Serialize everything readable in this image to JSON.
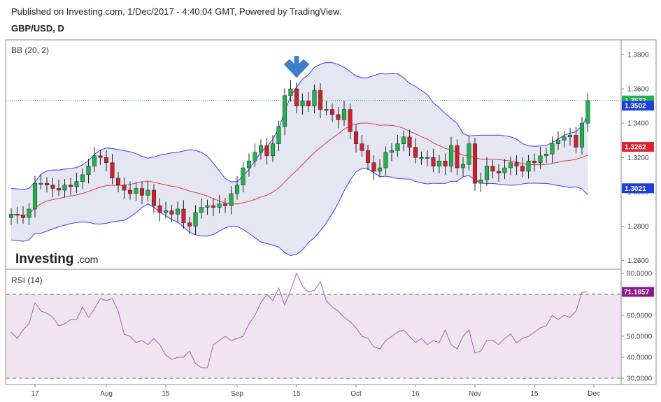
{
  "header": {
    "published": "Published on Investing.com, 1/Dec/2017 - 4:40:04 GMT, Powered by TradingView.",
    "symbol": "GBP/USD, D"
  },
  "logo": {
    "brand": "Investing",
    "suffix": ".com"
  },
  "colors": {
    "up_candle": "#22b14c",
    "down_candle": "#d0202a",
    "bb_band": "#3a3aff",
    "bb_fill": "#e4e6f2",
    "bb_basis": "#e0393e",
    "rsi_line": "#a15fb0",
    "rsi_fill": "#f1e4f1",
    "arrow": "#3d7fc9",
    "last_price_line": "#22b14c"
  },
  "chart_data": [
    {
      "type": "candlestick",
      "title": "BB (20, 2)",
      "x_tick_labels": [
        "17",
        "Aug",
        "15",
        "Sep",
        "15",
        "Oct",
        "16",
        "Nov",
        "15",
        "Dec"
      ],
      "x_tick_index": [
        4,
        16,
        26,
        38,
        48,
        58,
        68,
        78,
        88,
        98
      ],
      "y_range": [
        1.255,
        1.3885
      ],
      "y_ticks": [
        "1.3800",
        "1.3600",
        "1.3400",
        "1.3200",
        "1.3000",
        "1.2800",
        "1.2600"
      ],
      "y_tick_values": [
        1.38,
        1.36,
        1.34,
        1.32,
        1.3,
        1.28,
        1.26
      ],
      "annotation": {
        "type": "down-arrow",
        "bar_index": 48
      },
      "price_tags": [
        {
          "label": "1.3532",
          "value": 1.3532,
          "color": "#22b14c"
        },
        {
          "label": "1.3502",
          "value": 1.3502,
          "color": "#1f3fe0"
        },
        {
          "label": "1.3262",
          "value": 1.3262,
          "color": "#e0202a"
        },
        {
          "label": "1.3021",
          "value": 1.3021,
          "color": "#1f3fe0"
        }
      ],
      "last_price": 1.3532,
      "close": [
        1.287,
        1.2865,
        1.285,
        1.29,
        1.305,
        1.305,
        1.304,
        1.302,
        1.301,
        1.304,
        1.303,
        1.306,
        1.31,
        1.315,
        1.321,
        1.32,
        1.317,
        1.308,
        1.304,
        1.301,
        1.299,
        1.302,
        1.298,
        1.301,
        1.292,
        1.288,
        1.289,
        1.287,
        1.29,
        1.282,
        1.28,
        1.288,
        1.291,
        1.292,
        1.291,
        1.293,
        1.292,
        1.299,
        1.304,
        1.314,
        1.318,
        1.323,
        1.327,
        1.321,
        1.328,
        1.338,
        1.356,
        1.36,
        1.35,
        1.353,
        1.35,
        1.359,
        1.348,
        1.348,
        1.345,
        1.342,
        1.348,
        1.335,
        1.328,
        1.324,
        1.317,
        1.312,
        1.314,
        1.323,
        1.324,
        1.328,
        1.332,
        1.326,
        1.32,
        1.32,
        1.32,
        1.315,
        1.318,
        1.315,
        1.327,
        1.314,
        1.316,
        1.328,
        1.305,
        1.307,
        1.315,
        1.312,
        1.311,
        1.314,
        1.317,
        1.315,
        1.312,
        1.318,
        1.317,
        1.321,
        1.322,
        1.328,
        1.33,
        1.332,
        1.333,
        1.326,
        1.34,
        1.3532
      ]
    },
    {
      "type": "line",
      "title": "RSI (14)",
      "y_range": [
        27,
        82
      ],
      "y_ticks": [
        "80.0000",
        "70.0000",
        "60.0000",
        "50.0000",
        "40.0000",
        "30.0000"
      ],
      "y_tick_values": [
        80,
        70,
        60,
        50,
        40,
        30
      ],
      "reference_lines": [
        70,
        30
      ],
      "current_value_label": "71.1657",
      "current_value": 71.1657,
      "values": [
        52,
        49,
        53,
        56,
        66,
        62,
        61,
        59,
        55,
        56,
        58,
        58,
        64,
        59,
        63,
        68,
        67,
        68,
        62,
        51,
        50,
        47,
        48,
        46,
        49,
        46,
        41,
        39,
        40,
        40,
        43,
        37,
        35,
        35,
        46,
        48,
        50,
        48,
        49,
        50,
        56,
        60,
        66,
        70,
        67,
        73,
        65,
        72,
        80,
        74,
        71,
        72,
        76,
        67,
        64,
        62,
        59,
        57,
        54,
        50,
        49,
        45,
        44,
        48,
        50,
        52,
        53,
        50,
        47,
        49,
        46,
        48,
        47,
        53,
        46,
        44,
        50,
        53,
        42,
        43,
        48,
        48,
        46,
        49,
        51,
        47,
        49,
        50,
        52,
        54,
        55,
        60,
        58,
        60,
        59,
        62,
        71,
        71.1657
      ]
    }
  ]
}
